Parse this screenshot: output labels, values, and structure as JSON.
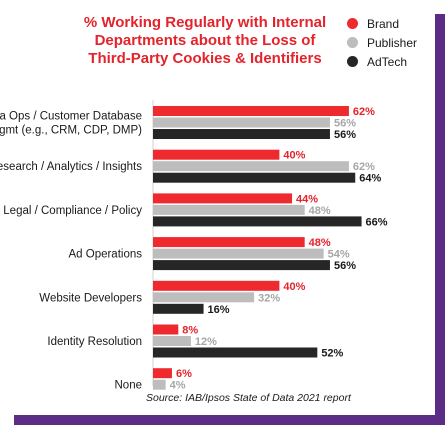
{
  "chart_data": {
    "type": "bar",
    "orientation": "horizontal",
    "title_lines": [
      "% Working Regularly with Internal",
      "Departments about the Loss of",
      "Third-Party Cookies & Identifiers"
    ],
    "categories": [
      [
        "Data Ops / Customer Database",
        "Mgmt (e.g., CRM, CDP, DMP)"
      ],
      [
        "Research / Analytics / Insights"
      ],
      [
        "Legal / Compliance / Policy"
      ],
      [
        "Ad Operations"
      ],
      [
        "Website Developers"
      ],
      [
        "Identity Resolution"
      ],
      [
        "None"
      ]
    ],
    "series": [
      {
        "name": "Brand",
        "color": "#ee2a2e",
        "label_color": "#e4232b",
        "values": [
          62,
          40,
          44,
          48,
          40,
          8,
          6
        ]
      },
      {
        "name": "Publisher",
        "color": "#bdbdbd",
        "label_color": "#a6a6a6",
        "values": [
          56,
          62,
          48,
          54,
          32,
          12,
          4
        ]
      },
      {
        "name": "AdTech",
        "color": "#262626",
        "label_color": "#1a1a1a",
        "values": [
          56,
          64,
          66,
          56,
          16,
          52,
          0
        ]
      }
    ],
    "value_suffix": "%",
    "xlim": [
      0,
      100
    ],
    "legend_position": "top-right",
    "grid": false,
    "source": "Source: IAB/Ipsos State of Data 2021 report"
  }
}
